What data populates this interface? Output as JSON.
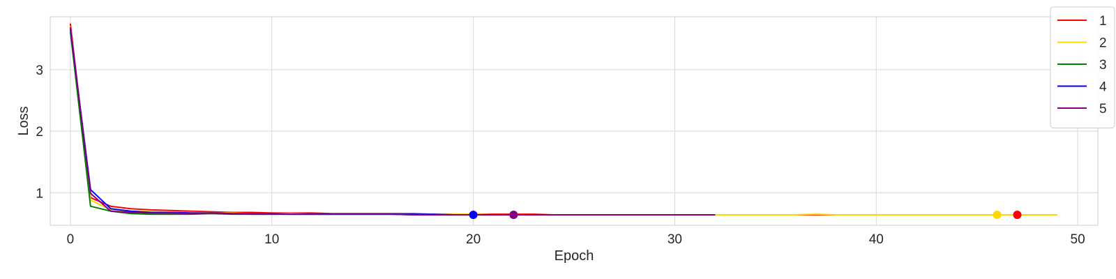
{
  "chart_data": {
    "type": "line",
    "title": "",
    "xlabel": "Epoch",
    "ylabel": "Loss",
    "xlim": [
      -1,
      51
    ],
    "ylim": [
      0.47,
      3.86
    ],
    "xticks": [
      0,
      10,
      20,
      30,
      40,
      50
    ],
    "yticks": [
      1,
      2,
      3
    ],
    "grid": true,
    "legend_position": "top-right",
    "series": [
      {
        "name": "1",
        "color": "#ff0000",
        "x": [
          0,
          1,
          2,
          3,
          4,
          5,
          6,
          7,
          8,
          9,
          10,
          11,
          12,
          13,
          14,
          15,
          16,
          17,
          18,
          19,
          20,
          21,
          22,
          23,
          24,
          25,
          26,
          27,
          28,
          29,
          30,
          31,
          32,
          33,
          34,
          35,
          36,
          37,
          38,
          39,
          40,
          41,
          42,
          43,
          44,
          45,
          46,
          47
        ],
        "y": [
          3.75,
          0.92,
          0.78,
          0.74,
          0.72,
          0.71,
          0.7,
          0.69,
          0.68,
          0.68,
          0.67,
          0.67,
          0.67,
          0.66,
          0.66,
          0.66,
          0.66,
          0.66,
          0.65,
          0.65,
          0.65,
          0.65,
          0.65,
          0.65,
          0.64,
          0.64,
          0.64,
          0.64,
          0.64,
          0.64,
          0.64,
          0.64,
          0.64,
          0.64,
          0.64,
          0.64,
          0.64,
          0.64,
          0.64,
          0.64,
          0.64,
          0.64,
          0.64,
          0.64,
          0.64,
          0.64,
          0.64,
          0.64
        ],
        "marker": {
          "x": 47,
          "y": 0.64
        }
      },
      {
        "name": "2",
        "color": "#ffd700",
        "x": [
          0,
          1,
          2,
          3,
          4,
          5,
          6,
          7,
          8,
          9,
          10,
          11,
          12,
          13,
          14,
          15,
          16,
          17,
          18,
          19,
          20,
          21,
          22,
          23,
          24,
          25,
          26,
          27,
          28,
          29,
          30,
          31,
          32,
          33,
          34,
          35,
          36,
          37,
          38,
          39,
          40,
          41,
          42,
          43,
          44,
          45,
          46,
          47,
          48,
          49
        ],
        "y": [
          3.7,
          0.88,
          0.72,
          0.7,
          0.69,
          0.68,
          0.68,
          0.67,
          0.67,
          0.66,
          0.66,
          0.66,
          0.65,
          0.65,
          0.65,
          0.65,
          0.65,
          0.65,
          0.65,
          0.65,
          0.65,
          0.64,
          0.64,
          0.64,
          0.64,
          0.64,
          0.64,
          0.64,
          0.64,
          0.64,
          0.64,
          0.64,
          0.64,
          0.64,
          0.64,
          0.64,
          0.64,
          0.65,
          0.64,
          0.64,
          0.64,
          0.64,
          0.64,
          0.64,
          0.64,
          0.64,
          0.64,
          0.64,
          0.64,
          0.64
        ],
        "marker": {
          "x": 46,
          "y": 0.64
        }
      },
      {
        "name": "3",
        "color": "#008000",
        "x": [
          0,
          1,
          2,
          3,
          4,
          5,
          6,
          7,
          8,
          9,
          10,
          11,
          12,
          13,
          14,
          15,
          16,
          17,
          18,
          19,
          20,
          21,
          22,
          23,
          24,
          25,
          26,
          27,
          28,
          29,
          30,
          31,
          32
        ],
        "y": [
          3.62,
          0.78,
          0.7,
          0.66,
          0.65,
          0.65,
          0.65,
          0.66,
          0.65,
          0.65,
          0.65,
          0.65,
          0.65,
          0.65,
          0.65,
          0.65,
          0.65,
          0.64,
          0.64,
          0.64,
          0.64,
          0.64,
          0.64,
          0.64,
          0.64,
          0.64,
          0.64,
          0.64,
          0.64,
          0.64,
          0.64,
          0.64,
          0.64
        ]
      },
      {
        "name": "4",
        "color": "#0000ff",
        "x": [
          0,
          1,
          2,
          3,
          4,
          5,
          6,
          7,
          8,
          9,
          10,
          11,
          12,
          13,
          14,
          15,
          16,
          17,
          18,
          19,
          20,
          21,
          22,
          23,
          24,
          25,
          26,
          27,
          28,
          29,
          30,
          31,
          32
        ],
        "y": [
          3.66,
          1.05,
          0.74,
          0.7,
          0.68,
          0.68,
          0.67,
          0.67,
          0.66,
          0.66,
          0.66,
          0.65,
          0.65,
          0.65,
          0.65,
          0.65,
          0.65,
          0.65,
          0.65,
          0.64,
          0.64,
          0.64,
          0.64,
          0.64,
          0.64,
          0.64,
          0.64,
          0.64,
          0.64,
          0.64,
          0.64,
          0.64,
          0.64
        ],
        "marker": {
          "x": 20,
          "y": 0.64
        }
      },
      {
        "name": "5",
        "color": "#800080",
        "x": [
          0,
          1,
          2,
          3,
          4,
          5,
          6,
          7,
          8,
          9,
          10,
          11,
          12,
          13,
          14,
          15,
          16,
          17,
          18,
          19,
          20,
          21,
          22,
          23,
          24,
          25,
          26,
          27,
          28,
          29,
          30,
          31,
          32
        ],
        "y": [
          3.69,
          0.99,
          0.7,
          0.68,
          0.67,
          0.67,
          0.66,
          0.67,
          0.66,
          0.65,
          0.65,
          0.65,
          0.65,
          0.65,
          0.65,
          0.65,
          0.65,
          0.64,
          0.64,
          0.64,
          0.64,
          0.64,
          0.64,
          0.64,
          0.64,
          0.64,
          0.64,
          0.64,
          0.64,
          0.64,
          0.64,
          0.64,
          0.64
        ],
        "marker": {
          "x": 22,
          "y": 0.64
        }
      }
    ]
  }
}
